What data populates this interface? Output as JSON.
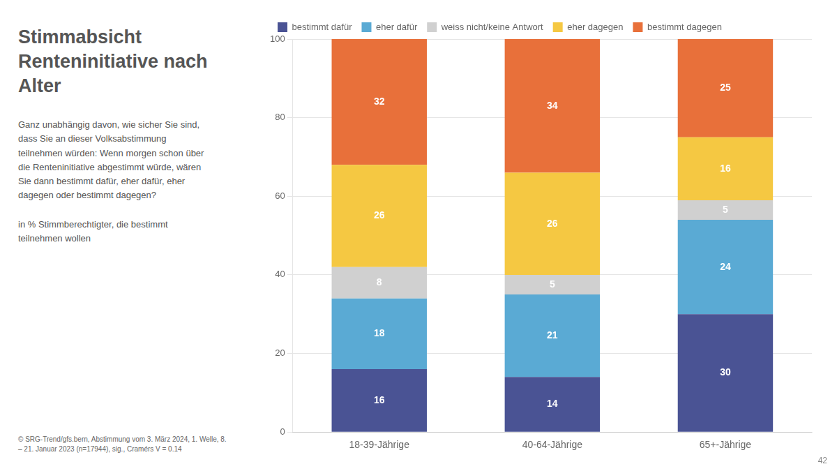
{
  "chart_data": {
    "type": "bar",
    "stacked": true,
    "title": "Stimmabsicht\nRenteninitiative nach\nAlter",
    "annotations": [
      "Ganz unabhängig davon, wie sicher Sie sind,\ndass Sie an dieser Volksabstimmung\nteilnehmen würden: Wenn morgen schon über\ndie Renteninitiative abgestimmt würde, wären\nSie dann bestimmt dafür, eher dafür, eher\ndagegen oder bestimmt dagegen?",
      "in % Stimmberechtigter, die bestimmt\nteilnehmen wollen",
      "© SRG-Trend/gfs.bern, Abstimmung vom 3. März 2024, 1. Welle, 8.\n– 21. Januar 2023 (n=17944), sig., Cramérs V = 0.14",
      "42"
    ],
    "categories": [
      "18-39-Jährige",
      "40-64-Jährige",
      "65+-Jährige"
    ],
    "series": [
      {
        "name": "bestimmt dafür",
        "color": "#4a5394",
        "values": [
          16,
          14,
          30
        ]
      },
      {
        "name": "eher dafür",
        "color": "#5aaad4",
        "values": [
          18,
          21,
          24
        ]
      },
      {
        "name": "weiss nicht/keine Antwort",
        "color": "#d0d0d0",
        "values": [
          8,
          5,
          5
        ]
      },
      {
        "name": "eher dagegen",
        "color": "#f5c842",
        "values": [
          26,
          26,
          16
        ]
      },
      {
        "name": "bestimmt dagegen",
        "color": "#e8703a",
        "values": [
          32,
          34,
          25
        ]
      }
    ],
    "ylim": [
      0,
      100
    ],
    "yticks": [
      0,
      20,
      40,
      60,
      80,
      100
    ],
    "grid": true,
    "legend": "top",
    "data_labels": true
  }
}
